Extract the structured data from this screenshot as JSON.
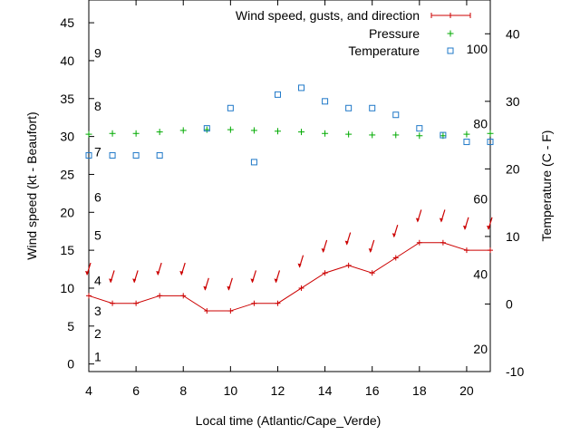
{
  "chart_data": {
    "type": "line",
    "title": "",
    "xlabel": "Local time (Atlantic/Cape_Verde)",
    "ylabel_left": "Wind speed (kt - Beaufort)",
    "ylabel_right": "Temperature (C - F)",
    "xlim": [
      4,
      21
    ],
    "ylim_left": [
      -1,
      48
    ],
    "ylim_right": [
      -10,
      45
    ],
    "x_ticks": [
      4,
      6,
      8,
      10,
      12,
      14,
      16,
      18,
      20
    ],
    "y_ticks_left": [
      0,
      5,
      10,
      15,
      20,
      25,
      30,
      35,
      40,
      45
    ],
    "y_ticks_right": [
      -10,
      0,
      10,
      20,
      30,
      40
    ],
    "beaufort_labels": [
      "1",
      "2",
      "3",
      "4",
      "5",
      "6",
      "7",
      "8",
      "9"
    ],
    "beaufort_kt": [
      1,
      4,
      7,
      11,
      17,
      22,
      28,
      34,
      41
    ],
    "fahrenheit_labels": [
      "20",
      "40",
      "60",
      "80",
      "100"
    ],
    "fahrenheit_values": [
      20,
      40,
      60,
      80,
      100
    ],
    "grid": false,
    "legend_position": "top-right",
    "series": [
      {
        "name": "Wind speed, gusts, and direction",
        "axis": "left",
        "color": "#cc0000",
        "x": [
          4,
          5,
          6,
          7,
          8,
          9,
          10,
          11,
          12,
          13,
          14,
          15,
          16,
          17,
          18,
          19,
          20,
          21
        ],
        "values": [
          9,
          8,
          8,
          9,
          9,
          7,
          7,
          8,
          8,
          10,
          12,
          13,
          12,
          14,
          16,
          16,
          15,
          15
        ],
        "direction_arrow_y": [
          12.5,
          11.5,
          11.5,
          12.5,
          12.5,
          10.5,
          10.5,
          11.5,
          11.5,
          13.5,
          15.5,
          16.5,
          15.5,
          17.5,
          19.5,
          19.5,
          18.5,
          18.5
        ]
      },
      {
        "name": "Pressure",
        "axis": "left",
        "color": "#00aa00",
        "x": [
          4,
          5,
          6,
          7,
          8,
          9,
          10,
          11,
          12,
          13,
          14,
          15,
          16,
          17,
          18,
          19,
          20,
          21
        ],
        "values": [
          30.3,
          30.4,
          30.4,
          30.6,
          30.8,
          30.9,
          30.9,
          30.8,
          30.7,
          30.6,
          30.4,
          30.3,
          30.2,
          30.2,
          30.1,
          30.1,
          30.3,
          30.4
        ]
      },
      {
        "name": "Temperature",
        "axis": "right",
        "color": "#1f78c8",
        "x": [
          4,
          5,
          6,
          7,
          9,
          10,
          11,
          12,
          13,
          14,
          15,
          16,
          17,
          18,
          19,
          20,
          21
        ],
        "values": [
          22,
          22,
          22,
          22,
          26,
          29,
          21,
          31,
          32,
          30,
          29,
          29,
          28,
          26,
          25,
          24,
          24
        ]
      }
    ]
  }
}
